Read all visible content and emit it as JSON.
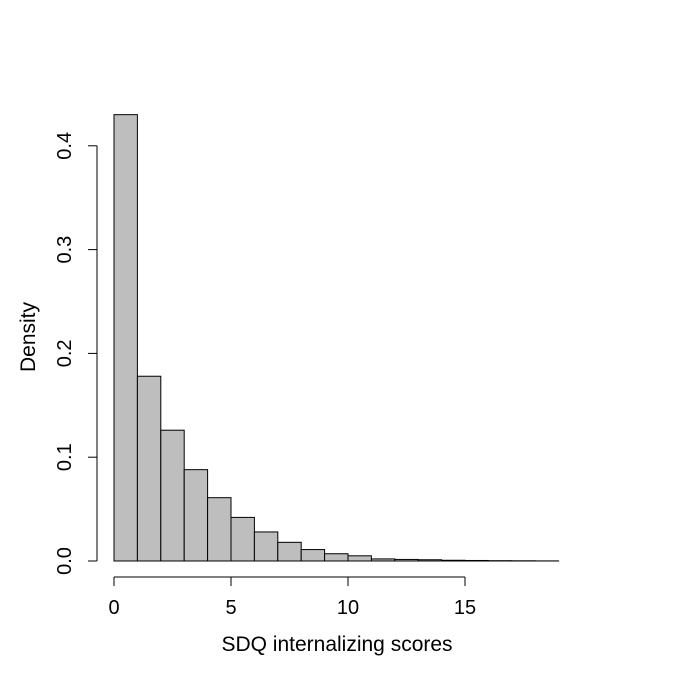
{
  "chart_data": {
    "type": "bar",
    "subtype": "histogram",
    "title": "",
    "xlabel": "SDQ internalizing scores",
    "ylabel": "Density",
    "bin_width": 1,
    "bins": [
      {
        "start": 0,
        "end": 1,
        "density": 0.43
      },
      {
        "start": 1,
        "end": 2,
        "density": 0.178
      },
      {
        "start": 2,
        "end": 3,
        "density": 0.126
      },
      {
        "start": 3,
        "end": 4,
        "density": 0.088
      },
      {
        "start": 4,
        "end": 5,
        "density": 0.061
      },
      {
        "start": 5,
        "end": 6,
        "density": 0.042
      },
      {
        "start": 6,
        "end": 7,
        "density": 0.028
      },
      {
        "start": 7,
        "end": 8,
        "density": 0.018
      },
      {
        "start": 8,
        "end": 9,
        "density": 0.011
      },
      {
        "start": 9,
        "end": 10,
        "density": 0.007
      },
      {
        "start": 10,
        "end": 11,
        "density": 0.005
      },
      {
        "start": 11,
        "end": 12,
        "density": 0.002
      },
      {
        "start": 12,
        "end": 13,
        "density": 0.0015
      },
      {
        "start": 13,
        "end": 14,
        "density": 0.0012
      },
      {
        "start": 14,
        "end": 15,
        "density": 0.0007
      },
      {
        "start": 15,
        "end": 16,
        "density": 0.0005
      },
      {
        "start": 16,
        "end": 17,
        "density": 0.0003
      },
      {
        "start": 17,
        "end": 18,
        "density": 0.0002
      },
      {
        "start": 18,
        "end": 19,
        "density": 0.0001
      }
    ],
    "xlim": [
      0,
      19
    ],
    "ylim": [
      0,
      0.43
    ],
    "x_ticks": [
      0,
      5,
      10,
      15
    ],
    "x_tick_labels": [
      "0",
      "5",
      "10",
      "15"
    ],
    "y_ticks": [
      0.0,
      0.1,
      0.2,
      0.3,
      0.4
    ],
    "y_tick_labels": [
      "0.0",
      "0.1",
      "0.2",
      "0.3",
      "0.4"
    ],
    "grid": false,
    "legend": "none",
    "bar_color": "#bebebe",
    "edge_color": "#000000"
  }
}
